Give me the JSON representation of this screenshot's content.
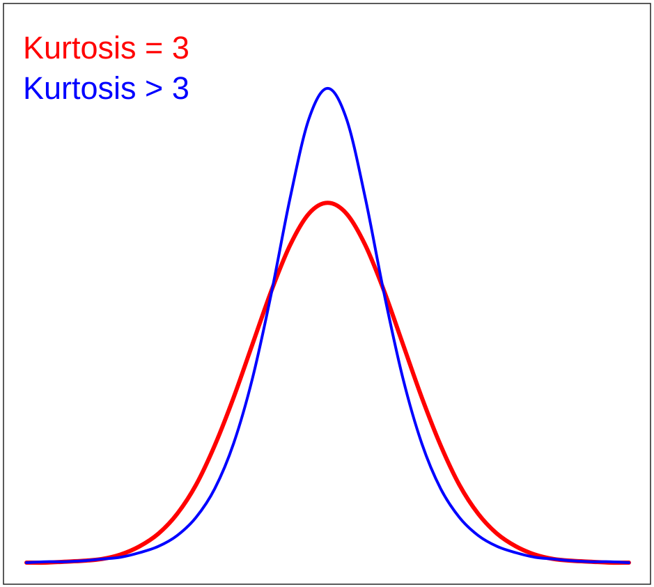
{
  "chart_data": {
    "type": "line",
    "x": [
      -4,
      -3.75,
      -3.5,
      -3.25,
      -3,
      -2.75,
      -2.5,
      -2.25,
      -2,
      -1.75,
      -1.5,
      -1.25,
      -1,
      -0.75,
      -0.5,
      -0.25,
      0,
      0.25,
      0.5,
      0.75,
      1,
      1.25,
      1.5,
      1.75,
      2,
      2.25,
      2.5,
      2.75,
      3,
      3.25,
      3.5,
      3.75,
      4
    ],
    "series": [
      {
        "name": "Kurtosis = 3",
        "color": "#ff0000",
        "width": 6,
        "values": [
          0.0,
          0.0,
          0.001,
          0.002,
          0.004,
          0.009,
          0.018,
          0.032,
          0.054,
          0.086,
          0.13,
          0.183,
          0.242,
          0.301,
          0.352,
          0.387,
          0.399,
          0.387,
          0.352,
          0.301,
          0.242,
          0.183,
          0.13,
          0.086,
          0.054,
          0.032,
          0.018,
          0.009,
          0.004,
          0.002,
          0.001,
          0.0,
          0.0
        ]
      },
      {
        "name": "Kurtosis > 3",
        "color": "#0000ff",
        "width": 4,
        "values": [
          0.0,
          0.001,
          0.001,
          0.002,
          0.004,
          0.006,
          0.011,
          0.018,
          0.03,
          0.05,
          0.082,
          0.132,
          0.204,
          0.298,
          0.404,
          0.492,
          0.526,
          0.492,
          0.404,
          0.298,
          0.204,
          0.132,
          0.082,
          0.05,
          0.03,
          0.018,
          0.011,
          0.006,
          0.004,
          0.002,
          0.001,
          0.001,
          0.0
        ]
      }
    ],
    "xlim": [
      -4,
      4
    ],
    "ylim": [
      0,
      0.6
    ],
    "legend": "upper left"
  }
}
